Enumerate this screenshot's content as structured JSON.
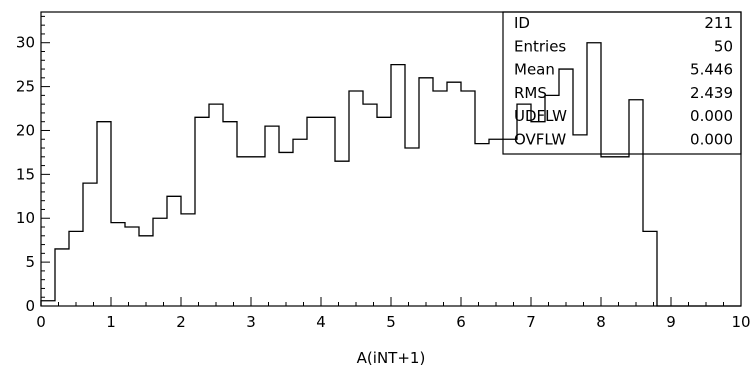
{
  "chart_data": {
    "type": "histogram",
    "xlabel": "A(iNT+1)",
    "ylabel": "",
    "xlim": [
      0,
      10
    ],
    "ylim": [
      0,
      33.5
    ],
    "xticks": [
      0,
      1,
      2,
      3,
      4,
      5,
      6,
      7,
      8,
      9,
      10
    ],
    "yticks": [
      0,
      5,
      10,
      15,
      20,
      25,
      30
    ],
    "bin_edges": [
      0,
      0.2,
      0.4,
      0.6,
      0.8,
      1.0,
      1.2,
      1.4,
      1.6,
      1.8,
      2.0,
      2.2,
      2.4,
      2.6,
      2.8,
      3.0,
      3.2,
      3.4,
      3.6,
      3.8,
      4.0,
      4.2,
      4.4,
      4.6,
      4.8,
      5.0,
      5.2,
      5.4,
      5.6,
      5.8,
      6.0,
      6.2,
      6.4,
      6.6,
      6.8,
      7.0,
      7.2,
      7.4,
      7.6,
      7.8,
      8.0,
      8.2,
      8.4,
      8.6,
      8.8,
      9.0,
      9.2,
      9.4,
      9.6,
      9.8,
      10.0
    ],
    "values": [
      0.6,
      6.5,
      8.5,
      14,
      21,
      9.5,
      9,
      8,
      10,
      12.5,
      10.5,
      21.5,
      23,
      21,
      17,
      17,
      20.5,
      17.5,
      19,
      21.5,
      21.5,
      16.5,
      24.5,
      23,
      21.5,
      27.5,
      18,
      26,
      24.5,
      25.5,
      24.5,
      18.5,
      19,
      19,
      23,
      21,
      24,
      27,
      19.5,
      30,
      17,
      17,
      23.5,
      8.5,
      0,
      0,
      0,
      0,
      0,
      0
    ],
    "stats": {
      "rows": [
        {
          "label": "ID",
          "value": "211"
        },
        {
          "label": "Entries",
          "value": "50"
        },
        {
          "label": "Mean",
          "value": "5.446"
        },
        {
          "label": "RMS",
          "value": "2.439"
        },
        {
          "label": "UDFLW",
          "value": "0.000"
        },
        {
          "label": "OVFLW",
          "value": "0.000"
        }
      ]
    }
  }
}
